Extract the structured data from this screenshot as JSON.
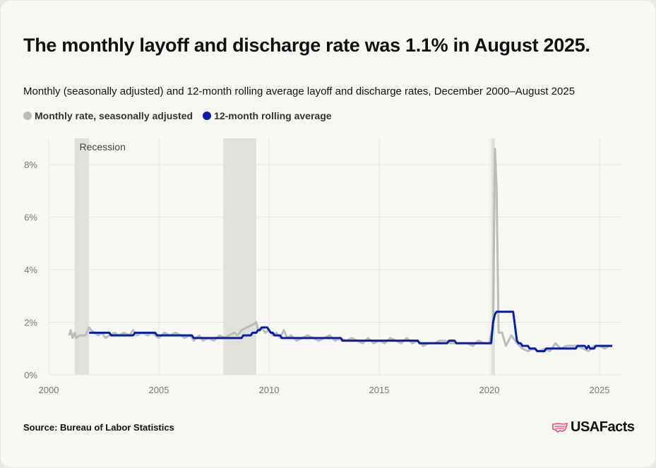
{
  "title": "The monthly layoff and discharge rate was 1.1% in August 2025.",
  "subtitle": "Monthly (seasonally adjusted) and 12-month rolling average layoff and discharge rates, December 2000–August 2025",
  "source": "Source: Bureau of Labor Statistics",
  "logo_text": "USAFacts",
  "colors": {
    "monthly": "#bdbdb8",
    "rolling": "#0a1fa8",
    "recession": "#e1e1dc",
    "logo": "#e5487f"
  },
  "chart_data": {
    "type": "line",
    "xlim": [
      2000,
      2026
    ],
    "ylim": [
      0,
      9
    ],
    "grid": true,
    "x_ticks": [
      "2000",
      "2005",
      "2010",
      "2015",
      "2020",
      "2025"
    ],
    "y_ticks": [
      "0%",
      "2%",
      "4%",
      "6%",
      "8%"
    ],
    "recession_label": "Recession",
    "recessions": [
      [
        2001.17,
        2001.83
      ],
      [
        2007.92,
        2009.42
      ],
      [
        2020.08,
        2020.25
      ]
    ],
    "legend_placement": "top-left",
    "series": [
      {
        "name": "Monthly rate, seasonally adjusted",
        "color_key": "monthly",
        "points": [
          [
            2000.92,
            1.5
          ],
          [
            2001.0,
            1.7
          ],
          [
            2001.08,
            1.4
          ],
          [
            2001.17,
            1.6
          ],
          [
            2001.25,
            1.4
          ],
          [
            2001.42,
            1.5
          ],
          [
            2001.67,
            1.5
          ],
          [
            2001.83,
            1.8
          ],
          [
            2001.92,
            1.7
          ],
          [
            2002.08,
            1.6
          ],
          [
            2002.25,
            1.5
          ],
          [
            2002.42,
            1.6
          ],
          [
            2002.58,
            1.4
          ],
          [
            2002.75,
            1.5
          ],
          [
            2003.0,
            1.6
          ],
          [
            2003.17,
            1.5
          ],
          [
            2003.42,
            1.6
          ],
          [
            2003.67,
            1.5
          ],
          [
            2003.83,
            1.7
          ],
          [
            2004.0,
            1.5
          ],
          [
            2004.25,
            1.6
          ],
          [
            2004.5,
            1.5
          ],
          [
            2004.67,
            1.6
          ],
          [
            2004.83,
            1.5
          ],
          [
            2005.0,
            1.4
          ],
          [
            2005.25,
            1.6
          ],
          [
            2005.5,
            1.5
          ],
          [
            2005.75,
            1.6
          ],
          [
            2006.0,
            1.5
          ],
          [
            2006.17,
            1.4
          ],
          [
            2006.42,
            1.5
          ],
          [
            2006.58,
            1.3
          ],
          [
            2006.83,
            1.5
          ],
          [
            2007.0,
            1.3
          ],
          [
            2007.25,
            1.4
          ],
          [
            2007.5,
            1.3
          ],
          [
            2007.75,
            1.5
          ],
          [
            2008.0,
            1.4
          ],
          [
            2008.17,
            1.5
          ],
          [
            2008.42,
            1.6
          ],
          [
            2008.58,
            1.5
          ],
          [
            2008.75,
            1.7
          ],
          [
            2009.0,
            1.8
          ],
          [
            2009.25,
            1.9
          ],
          [
            2009.42,
            2.0
          ],
          [
            2009.5,
            1.7
          ],
          [
            2009.67,
            1.8
          ],
          [
            2009.83,
            1.6
          ],
          [
            2010.0,
            1.7
          ],
          [
            2010.17,
            1.5
          ],
          [
            2010.33,
            1.6
          ],
          [
            2010.5,
            1.4
          ],
          [
            2010.67,
            1.7
          ],
          [
            2010.83,
            1.4
          ],
          [
            2011.0,
            1.5
          ],
          [
            2011.25,
            1.3
          ],
          [
            2011.5,
            1.4
          ],
          [
            2011.75,
            1.5
          ],
          [
            2012.0,
            1.4
          ],
          [
            2012.25,
            1.3
          ],
          [
            2012.5,
            1.4
          ],
          [
            2012.75,
            1.5
          ],
          [
            2013.0,
            1.3
          ],
          [
            2013.25,
            1.4
          ],
          [
            2013.5,
            1.3
          ],
          [
            2013.75,
            1.4
          ],
          [
            2014.0,
            1.3
          ],
          [
            2014.25,
            1.2
          ],
          [
            2014.5,
            1.4
          ],
          [
            2014.75,
            1.2
          ],
          [
            2015.0,
            1.3
          ],
          [
            2015.25,
            1.2
          ],
          [
            2015.5,
            1.4
          ],
          [
            2015.75,
            1.3
          ],
          [
            2016.0,
            1.2
          ],
          [
            2016.25,
            1.4
          ],
          [
            2016.5,
            1.2
          ],
          [
            2016.75,
            1.3
          ],
          [
            2017.0,
            1.1
          ],
          [
            2017.25,
            1.2
          ],
          [
            2017.5,
            1.2
          ],
          [
            2017.75,
            1.3
          ],
          [
            2018.0,
            1.3
          ],
          [
            2018.25,
            1.2
          ],
          [
            2018.5,
            1.2
          ],
          [
            2018.75,
            1.2
          ],
          [
            2019.0,
            1.2
          ],
          [
            2019.25,
            1.1
          ],
          [
            2019.5,
            1.3
          ],
          [
            2019.75,
            1.2
          ],
          [
            2020.0,
            1.2
          ],
          [
            2020.17,
            1.9
          ],
          [
            2020.25,
            8.6
          ],
          [
            2020.33,
            7.1
          ],
          [
            2020.42,
            1.6
          ],
          [
            2020.58,
            1.6
          ],
          [
            2020.75,
            1.1
          ],
          [
            2021.0,
            1.5
          ],
          [
            2021.25,
            1.2
          ],
          [
            2021.5,
            1.0
          ],
          [
            2021.75,
            0.9
          ],
          [
            2022.0,
            1.0
          ],
          [
            2022.25,
            0.9
          ],
          [
            2022.5,
            1.0
          ],
          [
            2022.75,
            0.9
          ],
          [
            2023.0,
            1.2
          ],
          [
            2023.25,
            1.0
          ],
          [
            2023.5,
            1.1
          ],
          [
            2023.75,
            1.1
          ],
          [
            2024.0,
            1.1
          ],
          [
            2024.25,
            1.0
          ],
          [
            2024.5,
            0.9
          ],
          [
            2024.75,
            1.1
          ],
          [
            2025.0,
            1.1
          ],
          [
            2025.25,
            1.0
          ],
          [
            2025.42,
            1.1
          ],
          [
            2025.58,
            1.1
          ]
        ]
      },
      {
        "name": "12-month rolling average",
        "color_key": "rolling",
        "points": [
          [
            2001.83,
            1.6
          ],
          [
            2002.75,
            1.6
          ],
          [
            2002.83,
            1.5
          ],
          [
            2003.83,
            1.5
          ],
          [
            2003.92,
            1.6
          ],
          [
            2004.83,
            1.6
          ],
          [
            2004.92,
            1.5
          ],
          [
            2006.5,
            1.5
          ],
          [
            2006.58,
            1.4
          ],
          [
            2008.75,
            1.4
          ],
          [
            2008.83,
            1.5
          ],
          [
            2009.17,
            1.5
          ],
          [
            2009.25,
            1.6
          ],
          [
            2009.42,
            1.6
          ],
          [
            2009.5,
            1.7
          ],
          [
            2009.58,
            1.7
          ],
          [
            2009.67,
            1.8
          ],
          [
            2009.92,
            1.8
          ],
          [
            2010.0,
            1.7
          ],
          [
            2010.08,
            1.6
          ],
          [
            2010.17,
            1.6
          ],
          [
            2010.25,
            1.5
          ],
          [
            2010.5,
            1.5
          ],
          [
            2010.58,
            1.4
          ],
          [
            2013.25,
            1.4
          ],
          [
            2013.33,
            1.3
          ],
          [
            2016.75,
            1.3
          ],
          [
            2016.83,
            1.2
          ],
          [
            2018.08,
            1.2
          ],
          [
            2018.17,
            1.3
          ],
          [
            2018.42,
            1.3
          ],
          [
            2018.5,
            1.2
          ],
          [
            2020.08,
            1.2
          ],
          [
            2020.17,
            2.0
          ],
          [
            2020.25,
            2.3
          ],
          [
            2020.33,
            2.4
          ],
          [
            2021.08,
            2.4
          ],
          [
            2021.25,
            1.3
          ],
          [
            2021.33,
            1.2
          ],
          [
            2021.42,
            1.2
          ],
          [
            2021.5,
            1.1
          ],
          [
            2021.75,
            1.1
          ],
          [
            2021.83,
            1.0
          ],
          [
            2022.08,
            1.0
          ],
          [
            2022.17,
            0.9
          ],
          [
            2022.5,
            0.9
          ],
          [
            2022.58,
            1.0
          ],
          [
            2023.92,
            1.0
          ],
          [
            2024.0,
            1.1
          ],
          [
            2024.33,
            1.1
          ],
          [
            2024.42,
            1.0
          ],
          [
            2024.5,
            1.1
          ],
          [
            2024.58,
            1.0
          ],
          [
            2024.75,
            1.0
          ],
          [
            2024.83,
            1.1
          ],
          [
            2025.58,
            1.1
          ]
        ]
      }
    ]
  }
}
